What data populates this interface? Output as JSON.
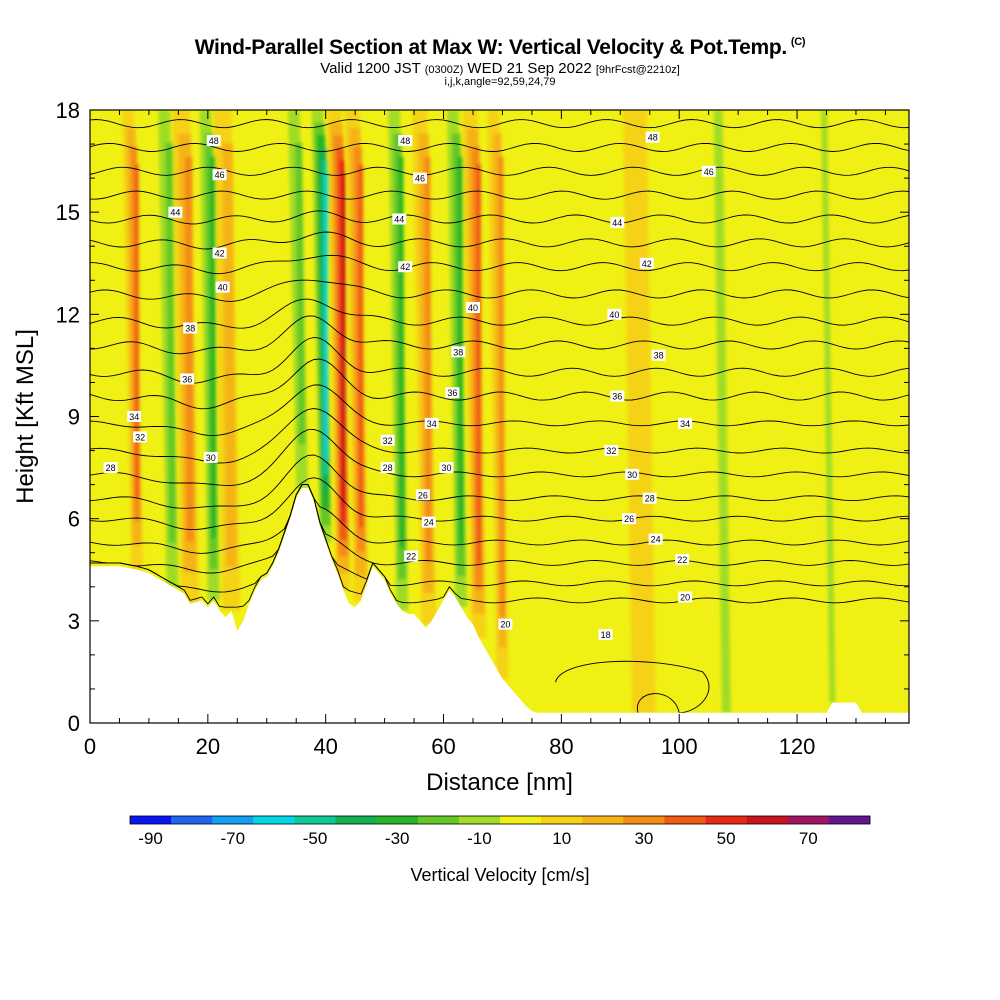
{
  "chart_data": {
    "type": "heatmap",
    "title": "Wind-Parallel Section at Max W: Vertical Velocity & Pot.Temp.",
    "title_mark": "(C)",
    "subtitle_main": "Valid 1200 JST",
    "subtitle_utc": "(0300Z)",
    "subtitle_date": "WED 21 Sep 2022",
    "subtitle_fcst": "[9hrFcst@2210z]",
    "subtitle2": "i,j,k,angle=92,59,24,79",
    "xlabel": "Distance [nm]",
    "ylabel": "Height [Kft MSL]",
    "xlim": [
      0,
      139
    ],
    "ylim": [
      0,
      18
    ],
    "x_ticks": [
      0,
      20,
      40,
      60,
      80,
      100,
      120
    ],
    "y_ticks": [
      0,
      3,
      6,
      9,
      12,
      15,
      18
    ],
    "grid": false,
    "colorbar": {
      "title": "Vertical Velocity [cm/s]",
      "tick_labels": [
        -90,
        -70,
        -50,
        -30,
        -10,
        10,
        30,
        50,
        70
      ],
      "levels": [
        -90,
        -80,
        -70,
        -60,
        -50,
        -40,
        -30,
        -20,
        -10,
        0,
        10,
        20,
        30,
        40,
        50,
        60,
        70,
        80
      ],
      "colors": [
        "#0a14f0",
        "#1e64f0",
        "#14a0f0",
        "#00d8e8",
        "#10c896",
        "#10b050",
        "#28b428",
        "#64c828",
        "#a0dc28",
        "#f0f014",
        "#f5d214",
        "#f5b414",
        "#f58c14",
        "#f05a14",
        "#e62814",
        "#c8141e",
        "#a01464",
        "#64148c"
      ]
    },
    "potential_temperature_contour_labels": [
      {
        "value": "48",
        "x": 21,
        "y": 17.1
      },
      {
        "value": "46",
        "x": 22,
        "y": 16.1
      },
      {
        "value": "44",
        "x": 14.5,
        "y": 15.0
      },
      {
        "value": "42",
        "x": 22,
        "y": 13.8
      },
      {
        "value": "40",
        "x": 22.5,
        "y": 12.8
      },
      {
        "value": "38",
        "x": 17,
        "y": 11.6
      },
      {
        "value": "36",
        "x": 16.5,
        "y": 10.1
      },
      {
        "value": "34",
        "x": 7.5,
        "y": 9.0
      },
      {
        "value": "32",
        "x": 8.5,
        "y": 8.4
      },
      {
        "value": "30",
        "x": 20.5,
        "y": 7.8
      },
      {
        "value": "28",
        "x": 3.5,
        "y": 7.5
      },
      {
        "value": "48",
        "x": 53.5,
        "y": 17.1
      },
      {
        "value": "46",
        "x": 56,
        "y": 16.0
      },
      {
        "value": "44",
        "x": 52.5,
        "y": 14.8
      },
      {
        "value": "42",
        "x": 53.5,
        "y": 13.4
      },
      {
        "value": "40",
        "x": 65,
        "y": 12.2
      },
      {
        "value": "38",
        "x": 62.5,
        "y": 10.9
      },
      {
        "value": "36",
        "x": 61.5,
        "y": 9.7
      },
      {
        "value": "34",
        "x": 58,
        "y": 8.8
      },
      {
        "value": "32",
        "x": 50.5,
        "y": 8.3
      },
      {
        "value": "30",
        "x": 60.5,
        "y": 7.5
      },
      {
        "value": "28",
        "x": 50.5,
        "y": 7.5
      },
      {
        "value": "26",
        "x": 56.5,
        "y": 6.7
      },
      {
        "value": "24",
        "x": 57.5,
        "y": 5.9
      },
      {
        "value": "22",
        "x": 54.5,
        "y": 4.9
      },
      {
        "value": "20",
        "x": 70.5,
        "y": 2.9
      },
      {
        "value": "18",
        "x": 87.5,
        "y": 2.6
      },
      {
        "value": "48",
        "x": 95.5,
        "y": 17.2
      },
      {
        "value": "46",
        "x": 105,
        "y": 16.2
      },
      {
        "value": "44",
        "x": 89.5,
        "y": 14.7
      },
      {
        "value": "42",
        "x": 94.5,
        "y": 13.5
      },
      {
        "value": "40",
        "x": 89,
        "y": 12.0
      },
      {
        "value": "38",
        "x": 96.5,
        "y": 10.8
      },
      {
        "value": "36",
        "x": 89.5,
        "y": 9.6
      },
      {
        "value": "34",
        "x": 101,
        "y": 8.8
      },
      {
        "value": "32",
        "x": 88.5,
        "y": 8.0
      },
      {
        "value": "30",
        "x": 92,
        "y": 7.3
      },
      {
        "value": "28",
        "x": 95,
        "y": 6.6
      },
      {
        "value": "26",
        "x": 91.5,
        "y": 6.0
      },
      {
        "value": "24",
        "x": 96,
        "y": 5.4
      },
      {
        "value": "22",
        "x": 100.5,
        "y": 4.8
      },
      {
        "value": "20",
        "x": 101,
        "y": 3.7
      }
    ],
    "isentrope_base_heights_kft": [
      3.6,
      4.1,
      4.7,
      5.3,
      6.0,
      6.6,
      7.3,
      8.0,
      8.8,
      9.6,
      10.3,
      11.1,
      11.8,
      12.6,
      13.4,
      14.1,
      14.8,
      15.5,
      16.2,
      16.9,
      17.6
    ],
    "upward_bands": [
      {
        "x_center": 8,
        "width": 2,
        "w": 45
      },
      {
        "x_center": 17,
        "width": 3,
        "w": 30
      },
      {
        "x_center": 24,
        "width": 3,
        "w": 25
      },
      {
        "x_center": 43,
        "width": 2.5,
        "w": 60
      },
      {
        "x_center": 46,
        "width": 2.5,
        "w": 40
      },
      {
        "x_center": 57.5,
        "width": 2.5,
        "w": 30
      },
      {
        "x_center": 66,
        "width": 2.5,
        "w": 40
      },
      {
        "x_center": 70,
        "width": 2,
        "w": 30
      },
      {
        "x_center": 94,
        "width": 4,
        "w": 12
      }
    ],
    "downward_bands": [
      {
        "x_center": 14,
        "width": 2,
        "w": -25
      },
      {
        "x_center": 21,
        "width": 2,
        "w": -30
      },
      {
        "x_center": 36,
        "width": 2,
        "w": -25
      },
      {
        "x_center": 40,
        "width": 2,
        "w": -60
      },
      {
        "x_center": 53,
        "width": 2,
        "w": -30
      },
      {
        "x_center": 63,
        "width": 2,
        "w": -35
      },
      {
        "x_center": 108,
        "width": 1.5,
        "w": -15
      },
      {
        "x_center": 126,
        "width": 1,
        "w": -15
      }
    ],
    "terrain_kft": [
      [
        0,
        4.6
      ],
      [
        5,
        4.6
      ],
      [
        8,
        4.5
      ],
      [
        10,
        4.4
      ],
      [
        12,
        4.2
      ],
      [
        14,
        4.0
      ],
      [
        15,
        3.9
      ],
      [
        16,
        3.8
      ],
      [
        17,
        3.5
      ],
      [
        19,
        3.6
      ],
      [
        20,
        3.4
      ],
      [
        21,
        3.6
      ],
      [
        22,
        3.3
      ],
      [
        23,
        3.1
      ],
      [
        24,
        3.3
      ],
      [
        25,
        2.7
      ],
      [
        26,
        3.0
      ],
      [
        27,
        3.5
      ],
      [
        28,
        3.9
      ],
      [
        29,
        4.2
      ],
      [
        30,
        4.3
      ],
      [
        31,
        4.6
      ],
      [
        32,
        5.0
      ],
      [
        33,
        5.5
      ],
      [
        34,
        6.0
      ],
      [
        35,
        6.6
      ],
      [
        36,
        6.9
      ],
      [
        37,
        6.9
      ],
      [
        38,
        6.5
      ],
      [
        39,
        5.8
      ],
      [
        40,
        5.3
      ],
      [
        41,
        4.8
      ],
      [
        42,
        4.4
      ],
      [
        43,
        3.9
      ],
      [
        44,
        3.5
      ],
      [
        45,
        3.4
      ],
      [
        46,
        3.6
      ],
      [
        47,
        4.1
      ],
      [
        48,
        4.6
      ],
      [
        49,
        4.4
      ],
      [
        50,
        4.2
      ],
      [
        51,
        3.8
      ],
      [
        52,
        3.5
      ],
      [
        53,
        3.3
      ],
      [
        54,
        3.2
      ],
      [
        55,
        3.2
      ],
      [
        56,
        3.0
      ],
      [
        57,
        2.8
      ],
      [
        58,
        3.0
      ],
      [
        59,
        3.3
      ],
      [
        60,
        3.6
      ],
      [
        61,
        3.9
      ],
      [
        62,
        3.7
      ],
      [
        63,
        3.4
      ],
      [
        64,
        3.1
      ],
      [
        65,
        2.9
      ],
      [
        66,
        2.5
      ],
      [
        67,
        2.2
      ],
      [
        68,
        1.9
      ],
      [
        69,
        1.6
      ],
      [
        70,
        1.3
      ],
      [
        71,
        1.1
      ],
      [
        72,
        0.9
      ],
      [
        73,
        0.7
      ],
      [
        74,
        0.5
      ],
      [
        75,
        0.35
      ],
      [
        76,
        0.3
      ],
      [
        78,
        0.3
      ],
      [
        80,
        0.3
      ],
      [
        85,
        0.3
      ],
      [
        90,
        0.3
      ],
      [
        100,
        0.3
      ],
      [
        110,
        0.3
      ],
      [
        120,
        0.3
      ],
      [
        125,
        0.3
      ],
      [
        126,
        0.6
      ],
      [
        130,
        0.6
      ],
      [
        131,
        0.3
      ],
      [
        139,
        0.3
      ]
    ]
  }
}
